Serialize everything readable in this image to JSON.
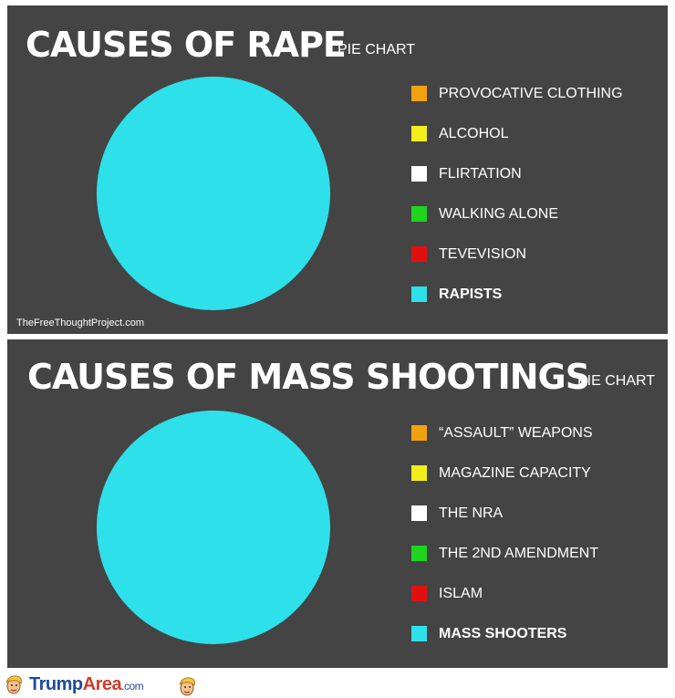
{
  "chart_data": [
    {
      "type": "pie",
      "title": "CAUSES OF RAPE",
      "subtitle": "PIE CHART",
      "categories": [
        "PROVOCATIVE CLOTHING",
        "ALCOHOL",
        "FLIRTATION",
        "WALKING ALONE",
        "TEVEVISION",
        "RAPISTS"
      ],
      "values": [
        0,
        0,
        0,
        0,
        0,
        100
      ],
      "colors": [
        "#f2a20f",
        "#f2ee1a",
        "#ffffff",
        "#1fd41f",
        "#e01010",
        "#2ee0ea"
      ],
      "bold": [
        false,
        false,
        false,
        false,
        false,
        true
      ],
      "legend": "right",
      "credit": "TheFreeThoughtProject.com"
    },
    {
      "type": "pie",
      "title": "CAUSES OF MASS SHOOTINGS",
      "subtitle": "PIE CHART",
      "categories": [
        "“ASSAULT” WEAPONS",
        "MAGAZINE CAPACITY",
        "THE NRA",
        "THE 2ND AMENDMENT",
        "ISLAM",
        "MASS SHOOTERS"
      ],
      "values": [
        0,
        0,
        0,
        0,
        0,
        100
      ],
      "colors": [
        "#f2a20f",
        "#f2ee1a",
        "#ffffff",
        "#1fd41f",
        "#e01010",
        "#2ee0ea"
      ],
      "bold": [
        false,
        false,
        false,
        false,
        false,
        true
      ],
      "legend": "right"
    }
  ],
  "footer": {
    "brand_part1": "Trump",
    "brand_part2": "Area",
    "brand_part3": ".com",
    "logo_icon": "trump-head-icon"
  }
}
